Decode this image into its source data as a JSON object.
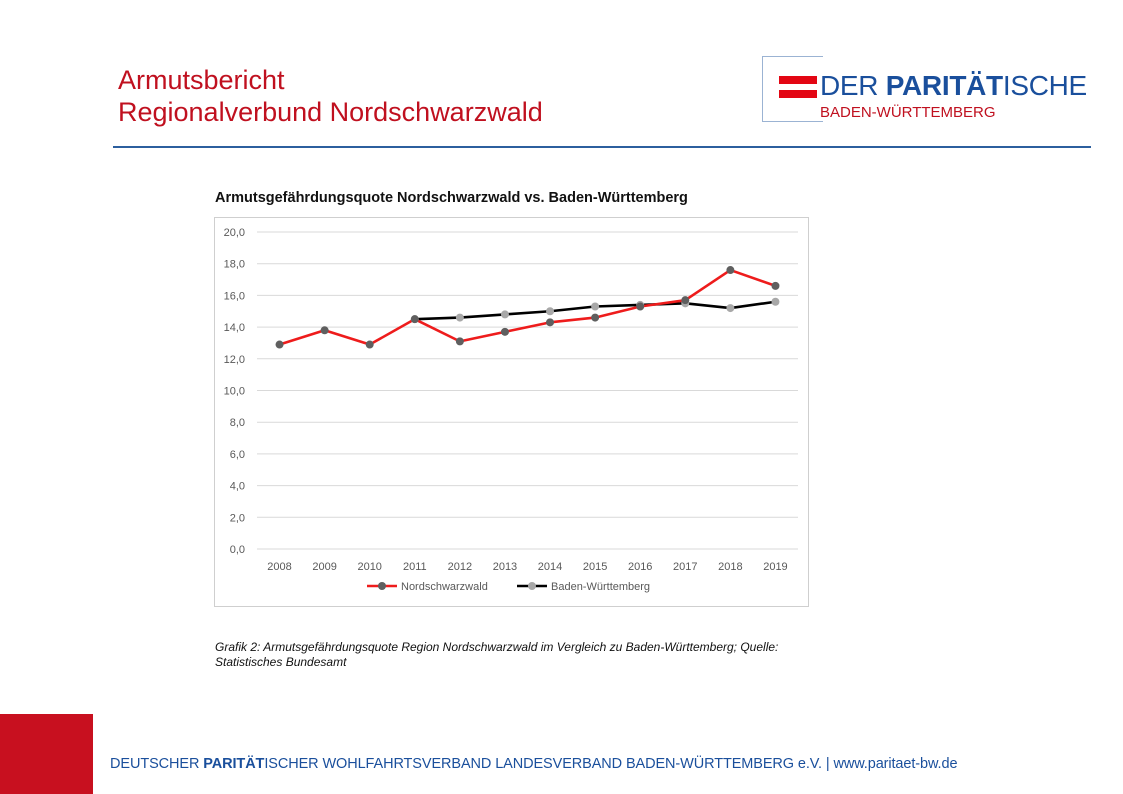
{
  "header": {
    "title_line1": "Armutsbericht",
    "title_line2": "Regionalverbund  Nordschwarzwald"
  },
  "logo": {
    "der": "DER ",
    "paritaet": "PARITÄT",
    "ische": "ISCHE",
    "region": "BADEN-WÜRTTEMBERG",
    "colors": {
      "blue": "#1a4f9c",
      "red": "#e30613"
    }
  },
  "chart_data": {
    "type": "line",
    "title": "Armutsgefährdungsquote Nordschwarzwald vs. Baden-Württemberg",
    "categories": [
      "2008",
      "2009",
      "2010",
      "2011",
      "2012",
      "2013",
      "2014",
      "2015",
      "2016",
      "2017",
      "2018",
      "2019"
    ],
    "y_ticks": [
      "0,0",
      "2,0",
      "4,0",
      "6,0",
      "8,0",
      "10,0",
      "12,0",
      "14,0",
      "16,0",
      "18,0",
      "20,0"
    ],
    "ylim": [
      0,
      20
    ],
    "grid": true,
    "legend_position": "bottom",
    "series": [
      {
        "name": "Nordschwarzwald",
        "line_color": "#ee1c1c",
        "marker_color": "#5f5f5f",
        "values": [
          12.9,
          13.8,
          12.9,
          14.5,
          13.1,
          13.7,
          14.3,
          14.6,
          15.3,
          15.7,
          17.6,
          16.6
        ]
      },
      {
        "name": "Baden-Württemberg",
        "line_color": "#000000",
        "marker_color": "#a8a8a8",
        "values": [
          null,
          null,
          null,
          14.5,
          14.6,
          14.8,
          15.0,
          15.3,
          15.4,
          15.5,
          15.2,
          15.6
        ]
      }
    ]
  },
  "caption": {
    "line1": "Grafik 2: Armutsgefährdungsquote Region Nordschwarzwald im Vergleich zu Baden-Württemberg; Quelle:",
    "line2": "Statistisches Bundesamt"
  },
  "footer": {
    "part1": "DEUTSCHER ",
    "bold": "PARITÄT",
    "part2": "ISCHER WOHLFAHRTSVERBAND LANDESVERBAND BADEN-WÜRTTEMBERG e.V. | www.paritaet-bw.de",
    "accent_color": "#c8101f"
  }
}
